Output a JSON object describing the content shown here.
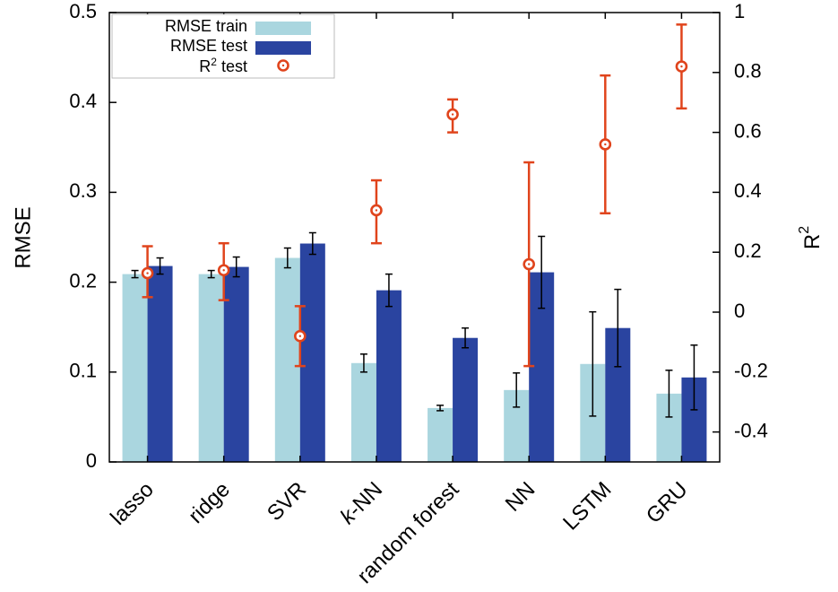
{
  "chart_data": {
    "type": "bar",
    "categories": [
      "lasso",
      "ridge",
      "SVR",
      "k-NN",
      "random forest",
      "NN",
      "LSTM",
      "GRU"
    ],
    "ylabel": "RMSE",
    "y2label": "R",
    "y2label_sup": "2",
    "ylim": [
      0,
      0.5
    ],
    "y2lim": [
      -0.5,
      1.0
    ],
    "yticks": [
      "0",
      "0.1",
      "0.2",
      "0.3",
      "0.4",
      "0.5"
    ],
    "y2ticks": [
      "-0.4",
      "-0.2",
      "0",
      "0.2",
      "0.4",
      "0.6",
      "0.8",
      "1"
    ],
    "grid": false,
    "legend_position": "top-left",
    "series": [
      {
        "name": "RMSE train",
        "axis": "left",
        "kind": "bar",
        "color": "#aad6df",
        "values": [
          0.209,
          0.209,
          0.227,
          0.11,
          0.06,
          0.08,
          0.109,
          0.076
        ],
        "errors": [
          0.004,
          0.004,
          0.011,
          0.01,
          0.003,
          0.019,
          0.058,
          0.026
        ]
      },
      {
        "name": "RMSE test",
        "axis": "left",
        "kind": "bar",
        "color": "#2a44a0",
        "values": [
          0.218,
          0.217,
          0.243,
          0.191,
          0.138,
          0.211,
          0.149,
          0.094
        ],
        "errors": [
          0.009,
          0.011,
          0.012,
          0.018,
          0.011,
          0.04,
          0.043,
          0.036
        ]
      },
      {
        "name": "R",
        "name_sup": "2",
        "name_suffix": " test",
        "axis": "right",
        "kind": "point",
        "color": "#e0441c",
        "values": [
          0.13,
          0.14,
          -0.08,
          0.34,
          0.66,
          0.16,
          0.56,
          0.82
        ],
        "err_low": [
          0.05,
          0.04,
          -0.18,
          0.23,
          0.6,
          -0.18,
          0.33,
          0.68
        ],
        "err_high": [
          0.22,
          0.23,
          0.02,
          0.44,
          0.71,
          0.5,
          0.79,
          0.96
        ]
      }
    ]
  }
}
